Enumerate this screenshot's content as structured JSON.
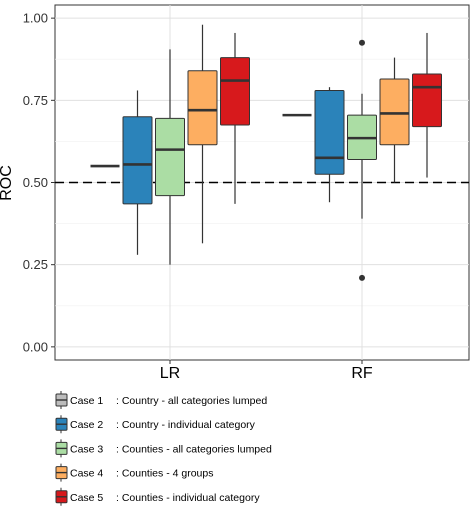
{
  "chart_data": {
    "type": "boxplot",
    "ylabel": "ROC",
    "xlabel": "",
    "ylim": [
      -0.04,
      1.04
    ],
    "yticks": [
      "0.00",
      "0.25",
      "0.50",
      "0.75",
      "1.00"
    ],
    "categories": [
      "LR",
      "RF"
    ],
    "reference_line": {
      "y": 0.5,
      "style": "dashed"
    },
    "grid": true,
    "legend_position": "bottom",
    "series": [
      {
        "name": "Case 1",
        "description": ": Country - all categories lumped",
        "color": "#bdbdbd",
        "boxes": [
          {
            "category": "LR",
            "min": 0.55,
            "q1": 0.55,
            "median": 0.55,
            "q3": 0.55,
            "max": 0.55,
            "outliers": []
          },
          {
            "category": "RF",
            "min": 0.705,
            "q1": 0.705,
            "median": 0.705,
            "q3": 0.705,
            "max": 0.705,
            "outliers": []
          }
        ]
      },
      {
        "name": "Case 2",
        "description": ": Country - individual category",
        "color": "#2b83ba",
        "boxes": [
          {
            "category": "LR",
            "min": 0.28,
            "q1": 0.435,
            "median": 0.555,
            "q3": 0.7,
            "max": 0.78,
            "outliers": []
          },
          {
            "category": "RF",
            "min": 0.44,
            "q1": 0.525,
            "median": 0.575,
            "q3": 0.78,
            "max": 0.79,
            "outliers": []
          }
        ]
      },
      {
        "name": "Case 3",
        "description": ": Counties - all categories lumped",
        "color": "#abdda4",
        "boxes": [
          {
            "category": "LR",
            "min": 0.25,
            "q1": 0.46,
            "median": 0.6,
            "q3": 0.695,
            "max": 0.905,
            "outliers": []
          },
          {
            "category": "RF",
            "min": 0.39,
            "q1": 0.57,
            "median": 0.635,
            "q3": 0.705,
            "max": 0.77,
            "outliers": [
              0.925,
              0.21
            ]
          }
        ]
      },
      {
        "name": "Case 4",
        "description": ": Counties - 4 groups",
        "color": "#fdae61",
        "boxes": [
          {
            "category": "LR",
            "min": 0.315,
            "q1": 0.615,
            "median": 0.72,
            "q3": 0.84,
            "max": 0.98,
            "outliers": []
          },
          {
            "category": "RF",
            "min": 0.5,
            "q1": 0.615,
            "median": 0.71,
            "q3": 0.815,
            "max": 0.88,
            "outliers": []
          }
        ]
      },
      {
        "name": "Case 5",
        "description": ": Counties - individual category",
        "color": "#d7191c",
        "boxes": [
          {
            "category": "LR",
            "min": 0.435,
            "q1": 0.675,
            "median": 0.81,
            "q3": 0.88,
            "max": 0.955,
            "outliers": []
          },
          {
            "category": "RF",
            "min": 0.515,
            "q1": 0.67,
            "median": 0.79,
            "q3": 0.83,
            "max": 0.955,
            "outliers": []
          }
        ]
      }
    ]
  }
}
